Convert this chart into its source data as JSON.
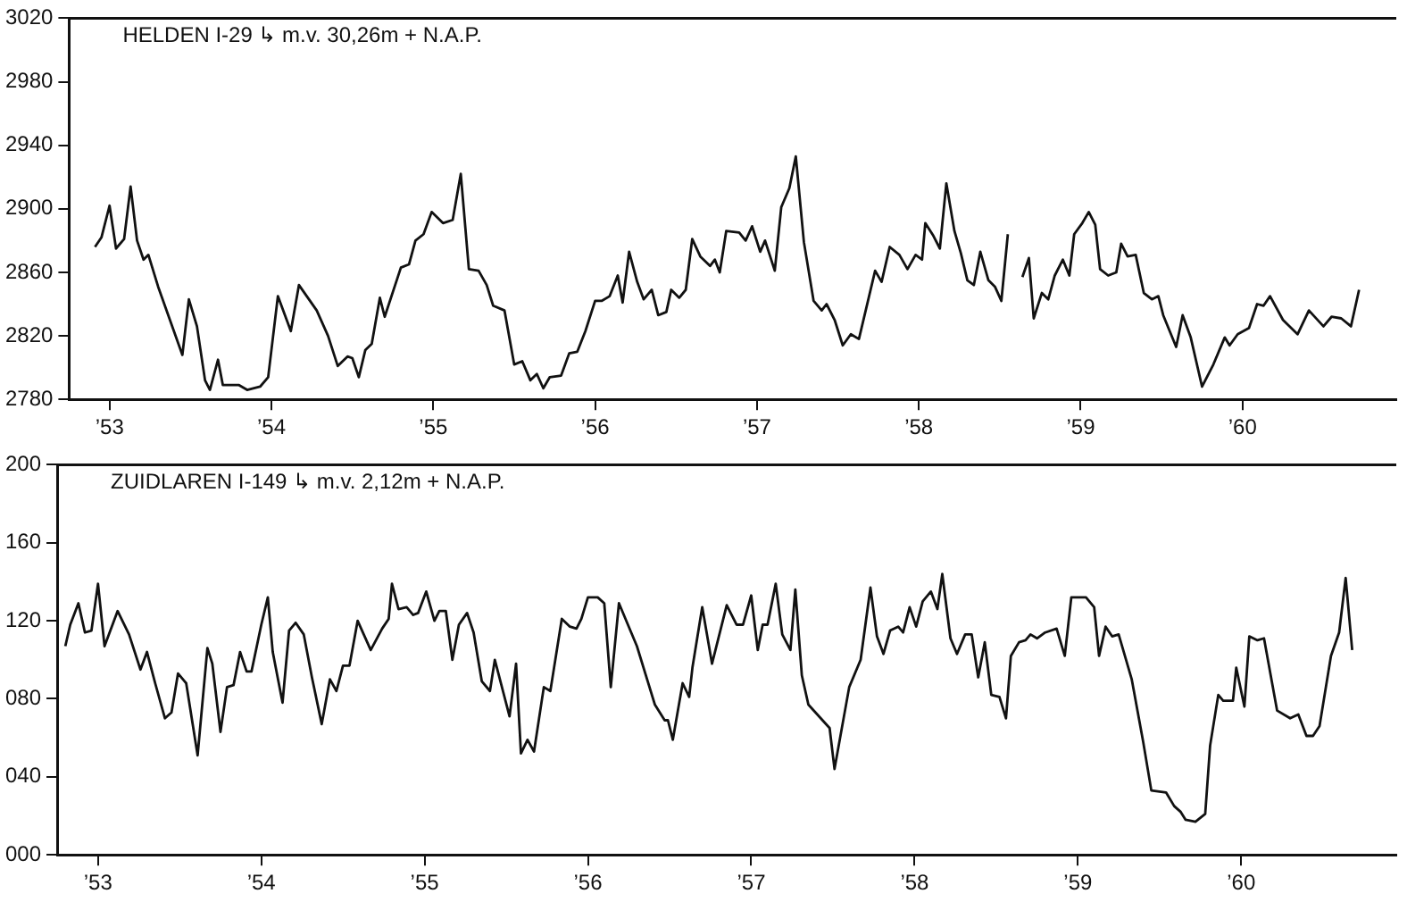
{
  "chart_data": [
    {
      "type": "line",
      "title": "HELDEN I-29 ↳ m.v. 30,26m + N.A.P.",
      "color": "#111111",
      "xlim": [
        1952.75,
        1960.95
      ],
      "xticks": [
        {
          "value": 1953,
          "label": "’53"
        },
        {
          "value": 1954,
          "label": "’54"
        },
        {
          "value": 1955,
          "label": "’55"
        },
        {
          "value": 1956,
          "label": "’56"
        },
        {
          "value": 1957,
          "label": "’57"
        },
        {
          "value": 1958,
          "label": "’58"
        },
        {
          "value": 1959,
          "label": "’59"
        },
        {
          "value": 1960,
          "label": "’60"
        }
      ],
      "ylim": [
        2780,
        3020
      ],
      "yticks": [
        2780,
        2820,
        2860,
        2900,
        2940,
        2980,
        3020
      ],
      "x": [
        1952.91,
        1952.95,
        1953.0,
        1953.04,
        1953.09,
        1953.13,
        1953.17,
        1953.21,
        1953.24,
        1953.3,
        1953.45,
        1953.49,
        1953.54,
        1953.59,
        1953.62,
        1953.67,
        1953.7,
        1953.8,
        1953.85,
        1953.93,
        1953.98,
        1954.04,
        1954.12,
        1954.17,
        1954.28,
        1954.35,
        1954.41,
        1954.47,
        1954.5,
        1954.54,
        1954.58,
        1954.62,
        1954.67,
        1954.7,
        1954.8,
        1954.85,
        1954.89,
        1954.94,
        1954.99,
        1955.06,
        1955.12,
        1955.17,
        1955.22,
        1955.28,
        1955.33,
        1955.37,
        1955.44,
        1955.5,
        1955.55,
        1955.6,
        1955.64,
        1955.68,
        1955.72,
        1955.79,
        1955.84,
        1955.89,
        1955.94,
        1956.0,
        1956.04,
        1956.09,
        1956.14,
        1956.17,
        1956.21,
        1956.26,
        1956.3,
        1956.35,
        1956.39,
        1956.44,
        1956.47,
        1956.52,
        1956.56,
        1956.6,
        1956.65,
        1956.71,
        1956.74,
        1956.77,
        1956.81,
        1956.89,
        1956.93,
        1956.97,
        1957.02,
        1957.05,
        1957.11,
        1957.15,
        1957.2,
        1957.24,
        1957.29,
        1957.35,
        1957.4,
        1957.43,
        1957.48,
        1957.53,
        1957.58,
        1957.63,
        1957.73,
        1957.77,
        1957.82,
        1957.88,
        1957.93,
        1957.98,
        1958.02,
        1958.04,
        1958.09,
        1958.13,
        1958.17,
        1958.22,
        1958.26,
        1958.3,
        1958.34,
        1958.38,
        1958.43,
        1958.47,
        1958.51,
        1958.55,
        1958.6,
        1958.64,
        1958.68,
        1958.71,
        1958.76,
        1958.8,
        1958.84,
        1958.89,
        1958.93,
        1958.96,
        1959.01,
        1959.05,
        1959.09,
        1959.12,
        1959.17,
        1959.22,
        1959.25,
        1959.29,
        1959.34,
        1959.39,
        1959.44,
        1959.48,
        1959.51,
        1959.59,
        1959.63,
        1959.68,
        1959.75,
        1959.82,
        1959.89,
        1959.92,
        1959.97,
        1960.04,
        1960.09,
        1960.13,
        1960.17,
        1960.25,
        1960.34,
        1960.41,
        1960.5,
        1960.55,
        1960.61,
        1960.67,
        1960.72
      ],
      "values": [
        2876,
        2882,
        2902,
        2875,
        2881,
        2914,
        2880,
        2868,
        2871,
        2851,
        2808,
        2843,
        2826,
        2792,
        2786,
        2805,
        2789,
        2789,
        2786,
        2788,
        2794,
        2845,
        2823,
        2852,
        2836,
        2820,
        2801,
        2807,
        2806,
        2794,
        2811,
        2815,
        2844,
        2832,
        2863,
        2865,
        2880,
        2884,
        2898,
        2891,
        2893,
        2922,
        2862,
        2861,
        2852,
        2839,
        2836,
        2802,
        2804,
        2792,
        2796,
        2787,
        2794,
        2795,
        2809,
        2810,
        2823,
        2842,
        2842,
        2845,
        2858,
        2841,
        2873,
        2854,
        2843,
        2849,
        2833,
        2835,
        2849,
        2844,
        2849,
        2881,
        2870,
        2864,
        2868,
        2860,
        2886,
        2885,
        2880,
        2889,
        2873,
        2880,
        2861,
        2901,
        2913,
        2933,
        2879,
        2842,
        2836,
        2840,
        2830,
        2814,
        2821,
        2818,
        2861,
        2854,
        2876,
        2871,
        2862,
        2871,
        2868,
        2891,
        2883,
        2875,
        2916,
        2886,
        2872,
        2855,
        2852,
        2873,
        2855,
        2851,
        2842,
        2884,
        null,
        2857,
        2869,
        2831,
        2847,
        2843,
        2858,
        2868,
        2858,
        2884,
        2891,
        2898,
        2890,
        2862,
        2858,
        2860,
        2878,
        2870,
        2871,
        2847,
        2843,
        2845,
        2833,
        2813,
        2833,
        2819,
        2788,
        2802,
        2819,
        2814,
        2821,
        2825,
        2840,
        2839,
        2845,
        2830,
        2821,
        2836,
        2826,
        2832,
        2831,
        2826,
        2849
      ]
    },
    {
      "type": "line",
      "title": "ZUIDLAREN I-149 ↳ m.v. 2,12m + N.A.P.",
      "color": "#111111",
      "xlim": [
        1952.75,
        1960.95
      ],
      "xticks": [
        {
          "value": 1953,
          "label": "’53"
        },
        {
          "value": 1954,
          "label": "’54"
        },
        {
          "value": 1955,
          "label": "’55"
        },
        {
          "value": 1956,
          "label": "’56"
        },
        {
          "value": 1957,
          "label": "’57"
        },
        {
          "value": 1958,
          "label": "’58"
        },
        {
          "value": 1959,
          "label": "’59"
        },
        {
          "value": 1960,
          "label": "’60"
        }
      ],
      "ylim": [
        0,
        200
      ],
      "yticks": [
        {
          "value": 0,
          "label": "000"
        },
        {
          "value": 40,
          "label": "040"
        },
        {
          "value": 80,
          "label": "080"
        },
        120,
        160,
        200
      ],
      "x": [
        1952.8,
        1952.83,
        1952.88,
        1952.92,
        1952.96,
        1953.0,
        1953.04,
        1953.12,
        1953.19,
        1953.26,
        1953.3,
        1953.35,
        1953.41,
        1953.45,
        1953.49,
        1953.54,
        1953.61,
        1953.67,
        1953.7,
        1953.75,
        1953.79,
        1953.83,
        1953.87,
        1953.91,
        1953.94,
        1954.0,
        1954.04,
        1954.07,
        1954.13,
        1954.17,
        1954.21,
        1954.26,
        1954.31,
        1954.37,
        1954.42,
        1954.46,
        1954.5,
        1954.54,
        1954.59,
        1954.67,
        1954.74,
        1954.78,
        1954.8,
        1954.84,
        1954.89,
        1954.93,
        1954.96,
        1955.01,
        1955.06,
        1955.09,
        1955.13,
        1955.17,
        1955.21,
        1955.26,
        1955.3,
        1955.35,
        1955.4,
        1955.43,
        1955.52,
        1955.56,
        1955.59,
        1955.63,
        1955.67,
        1955.73,
        1955.77,
        1955.84,
        1955.89,
        1955.93,
        1955.96,
        1956.0,
        1956.06,
        1956.1,
        1956.14,
        1956.19,
        1956.3,
        1956.41,
        1956.47,
        1956.49,
        1956.52,
        1956.58,
        1956.62,
        1956.64,
        1956.7,
        1956.76,
        1956.85,
        1956.91,
        1956.95,
        1957.0,
        1957.04,
        1957.07,
        1957.1,
        1957.15,
        1957.19,
        1957.24,
        1957.27,
        1957.31,
        1957.35,
        1957.48,
        1957.51,
        1957.6,
        1957.67,
        1957.73,
        1957.77,
        1957.81,
        1957.85,
        1957.9,
        1957.93,
        1957.97,
        1958.01,
        1958.05,
        1958.1,
        1958.14,
        1958.17,
        1958.22,
        1958.26,
        1958.31,
        1958.35,
        1958.39,
        1958.43,
        1958.47,
        1958.52,
        1958.56,
        1958.59,
        1958.64,
        1958.68,
        1958.71,
        1958.75,
        1958.8,
        1958.87,
        1958.92,
        1958.96,
        1959.05,
        1959.1,
        1959.13,
        1959.17,
        1959.21,
        1959.25,
        1959.33,
        1959.4,
        1959.45,
        1959.54,
        1959.59,
        1959.63,
        1959.66,
        1959.72,
        1959.78,
        1959.81,
        1959.86,
        1959.89,
        1959.95,
        1959.97,
        1960.02,
        1960.05,
        1960.1,
        1960.14,
        1960.22,
        1960.3,
        1960.35,
        1960.4,
        1960.44,
        1960.48,
        1960.55,
        1960.6,
        1960.64,
        1960.68
      ],
      "values": [
        107,
        118,
        129,
        114,
        115,
        139,
        107,
        125,
        113,
        95,
        104,
        88,
        70,
        73,
        93,
        88,
        51,
        106,
        98,
        63,
        86,
        87,
        104,
        94,
        94,
        118,
        132,
        104,
        78,
        115,
        119,
        113,
        91,
        67,
        90,
        84,
        97,
        97,
        120,
        105,
        116,
        121,
        139,
        126,
        127,
        123,
        124,
        135,
        120,
        125,
        125,
        100,
        118,
        124,
        114,
        89,
        84,
        100,
        71,
        98,
        52,
        59,
        53,
        86,
        84,
        121,
        117,
        116,
        121,
        132,
        132,
        129,
        86,
        129,
        107,
        77,
        69,
        69,
        59,
        88,
        81,
        96,
        127,
        98,
        128,
        118,
        118,
        133,
        105,
        118,
        118,
        139,
        113,
        105,
        136,
        92,
        77,
        65,
        44,
        86,
        100,
        137,
        112,
        103,
        115,
        117,
        114,
        127,
        117,
        130,
        135,
        126,
        144,
        111,
        103,
        113,
        113,
        91,
        109,
        82,
        81,
        70,
        102,
        109,
        110,
        113,
        111,
        114,
        116,
        102,
        132,
        132,
        127,
        102,
        117,
        112,
        113,
        90,
        58,
        33,
        32,
        25,
        22,
        18,
        17,
        21,
        56,
        82,
        79,
        79,
        96,
        76,
        112,
        110,
        111,
        74,
        70,
        72,
        61,
        61,
        66,
        102,
        114,
        142,
        105
      ]
    }
  ]
}
